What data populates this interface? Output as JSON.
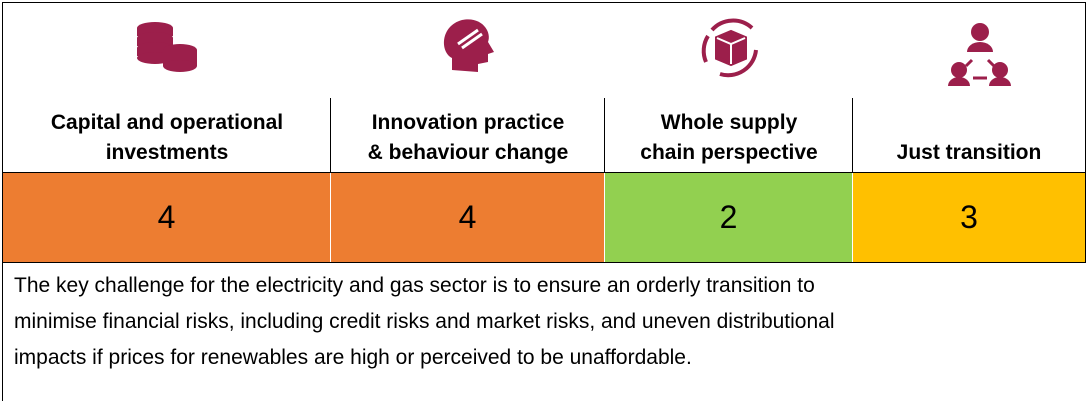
{
  "table": {
    "columns": [
      {
        "header_lines": [
          "Capital and operational",
          "investments"
        ],
        "score": 4,
        "color": "#ed7d31"
      },
      {
        "header_lines": [
          "Innovation practice",
          "& behaviour change"
        ],
        "score": 4,
        "color": "#ed7d31"
      },
      {
        "header_lines": [
          "Whole supply",
          "chain perspective"
        ],
        "score": 2,
        "color": "#92d050"
      },
      {
        "header_lines": [
          "Just transition"
        ],
        "score": 3,
        "color": "#ffc000"
      }
    ],
    "description_lines": [
      "The key challenge for the electricity and gas sector is to ensure an orderly transition to",
      "minimise financial risks, including credit risks and market risks, and uneven distributional",
      "impacts if prices for renewables are high or perceived to be unaffordable."
    ]
  }
}
